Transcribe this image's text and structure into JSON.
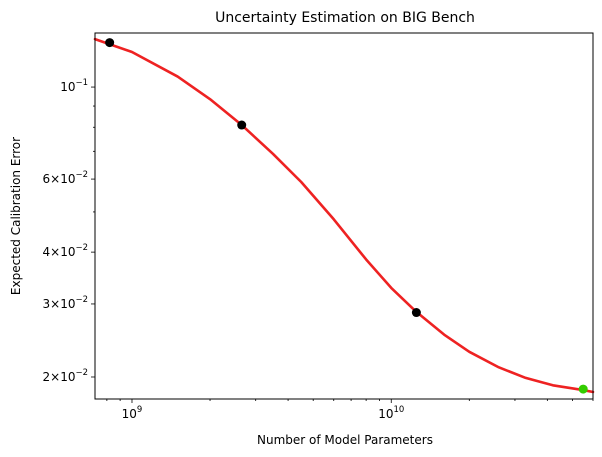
{
  "chart_data": {
    "type": "scatter",
    "title": "Uncertainty Estimation on BIG Bench",
    "xlabel": "Number of Model Parameters",
    "ylabel": "Expected Calibration Error",
    "xscale": "log",
    "yscale": "log",
    "xlim": [
      720000000,
      60000000000
    ],
    "ylim": [
      0.0177,
      0.135
    ],
    "grid": false,
    "x_ticks": [
      {
        "value": 1000000000,
        "base": "10",
        "exp": "9"
      },
      {
        "value": 10000000000,
        "base": "10",
        "exp": "10"
      }
    ],
    "y_ticks": [
      {
        "value": 0.1,
        "base": "10",
        "exp": "−1",
        "mant": ""
      },
      {
        "value": 0.06,
        "base": "10",
        "exp": "−2",
        "mant": "6"
      },
      {
        "value": 0.04,
        "base": "10",
        "exp": "−2",
        "mant": "4"
      },
      {
        "value": 0.03,
        "base": "10",
        "exp": "−2",
        "mant": "3"
      },
      {
        "value": 0.02,
        "base": "10",
        "exp": "−2",
        "mant": "2"
      }
    ],
    "points": [
      {
        "x": 820000000,
        "y": 0.128,
        "color": "#000000"
      },
      {
        "x": 2650000000,
        "y": 0.081,
        "color": "#000000"
      },
      {
        "x": 12500000000,
        "y": 0.0286,
        "color": "#000000"
      },
      {
        "x": 55000000000,
        "y": 0.0187,
        "color": "#33cc00"
      }
    ],
    "fit_curve": {
      "color": "#ee2222",
      "x": [
        720000000,
        1000000000,
        1500000000,
        2000000000,
        2650000000,
        3500000000,
        4500000000,
        6000000000,
        8000000000,
        10000000000,
        12500000000,
        16000000000,
        20000000000,
        26000000000,
        33000000000,
        42000000000,
        55000000000,
        60000000000
      ],
      "y": [
        0.1305,
        0.1215,
        0.106,
        0.0935,
        0.081,
        0.069,
        0.059,
        0.048,
        0.0384,
        0.0328,
        0.0287,
        0.0253,
        0.023,
        0.0211,
        0.0199,
        0.0191,
        0.0186,
        0.0184
      ]
    }
  }
}
